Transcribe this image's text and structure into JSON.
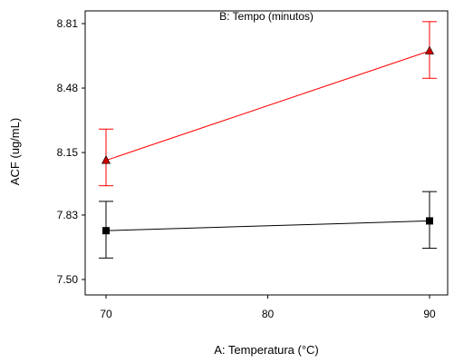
{
  "chart_data": {
    "type": "line",
    "title": "B: Tempo (minutos)",
    "xlabel": "A: Temperatura (°C)",
    "ylabel": "ACF (ug/mL)",
    "x_ticks": [
      "70",
      "80",
      "90"
    ],
    "y_ticks": [
      "7.50",
      "7.83",
      "8.15",
      "8.48",
      "8.81"
    ],
    "xlim": [
      69,
      91
    ],
    "ylim": [
      7.5,
      8.85
    ],
    "grid": false,
    "legend": "none",
    "series": [
      {
        "color": "#ff0000",
        "marker": "triangle",
        "marker_color": "#cc0000",
        "x": [
          70,
          90
        ],
        "y": [
          8.11,
          8.67
        ],
        "error_low": [
          7.98,
          8.53
        ],
        "error_high": [
          8.27,
          8.82
        ]
      },
      {
        "color": "#000000",
        "marker": "square",
        "marker_color": "#000000",
        "x": [
          70,
          90
        ],
        "y": [
          7.75,
          7.8
        ],
        "error_low": [
          7.61,
          7.66
        ],
        "error_high": [
          7.9,
          7.95
        ]
      }
    ]
  }
}
